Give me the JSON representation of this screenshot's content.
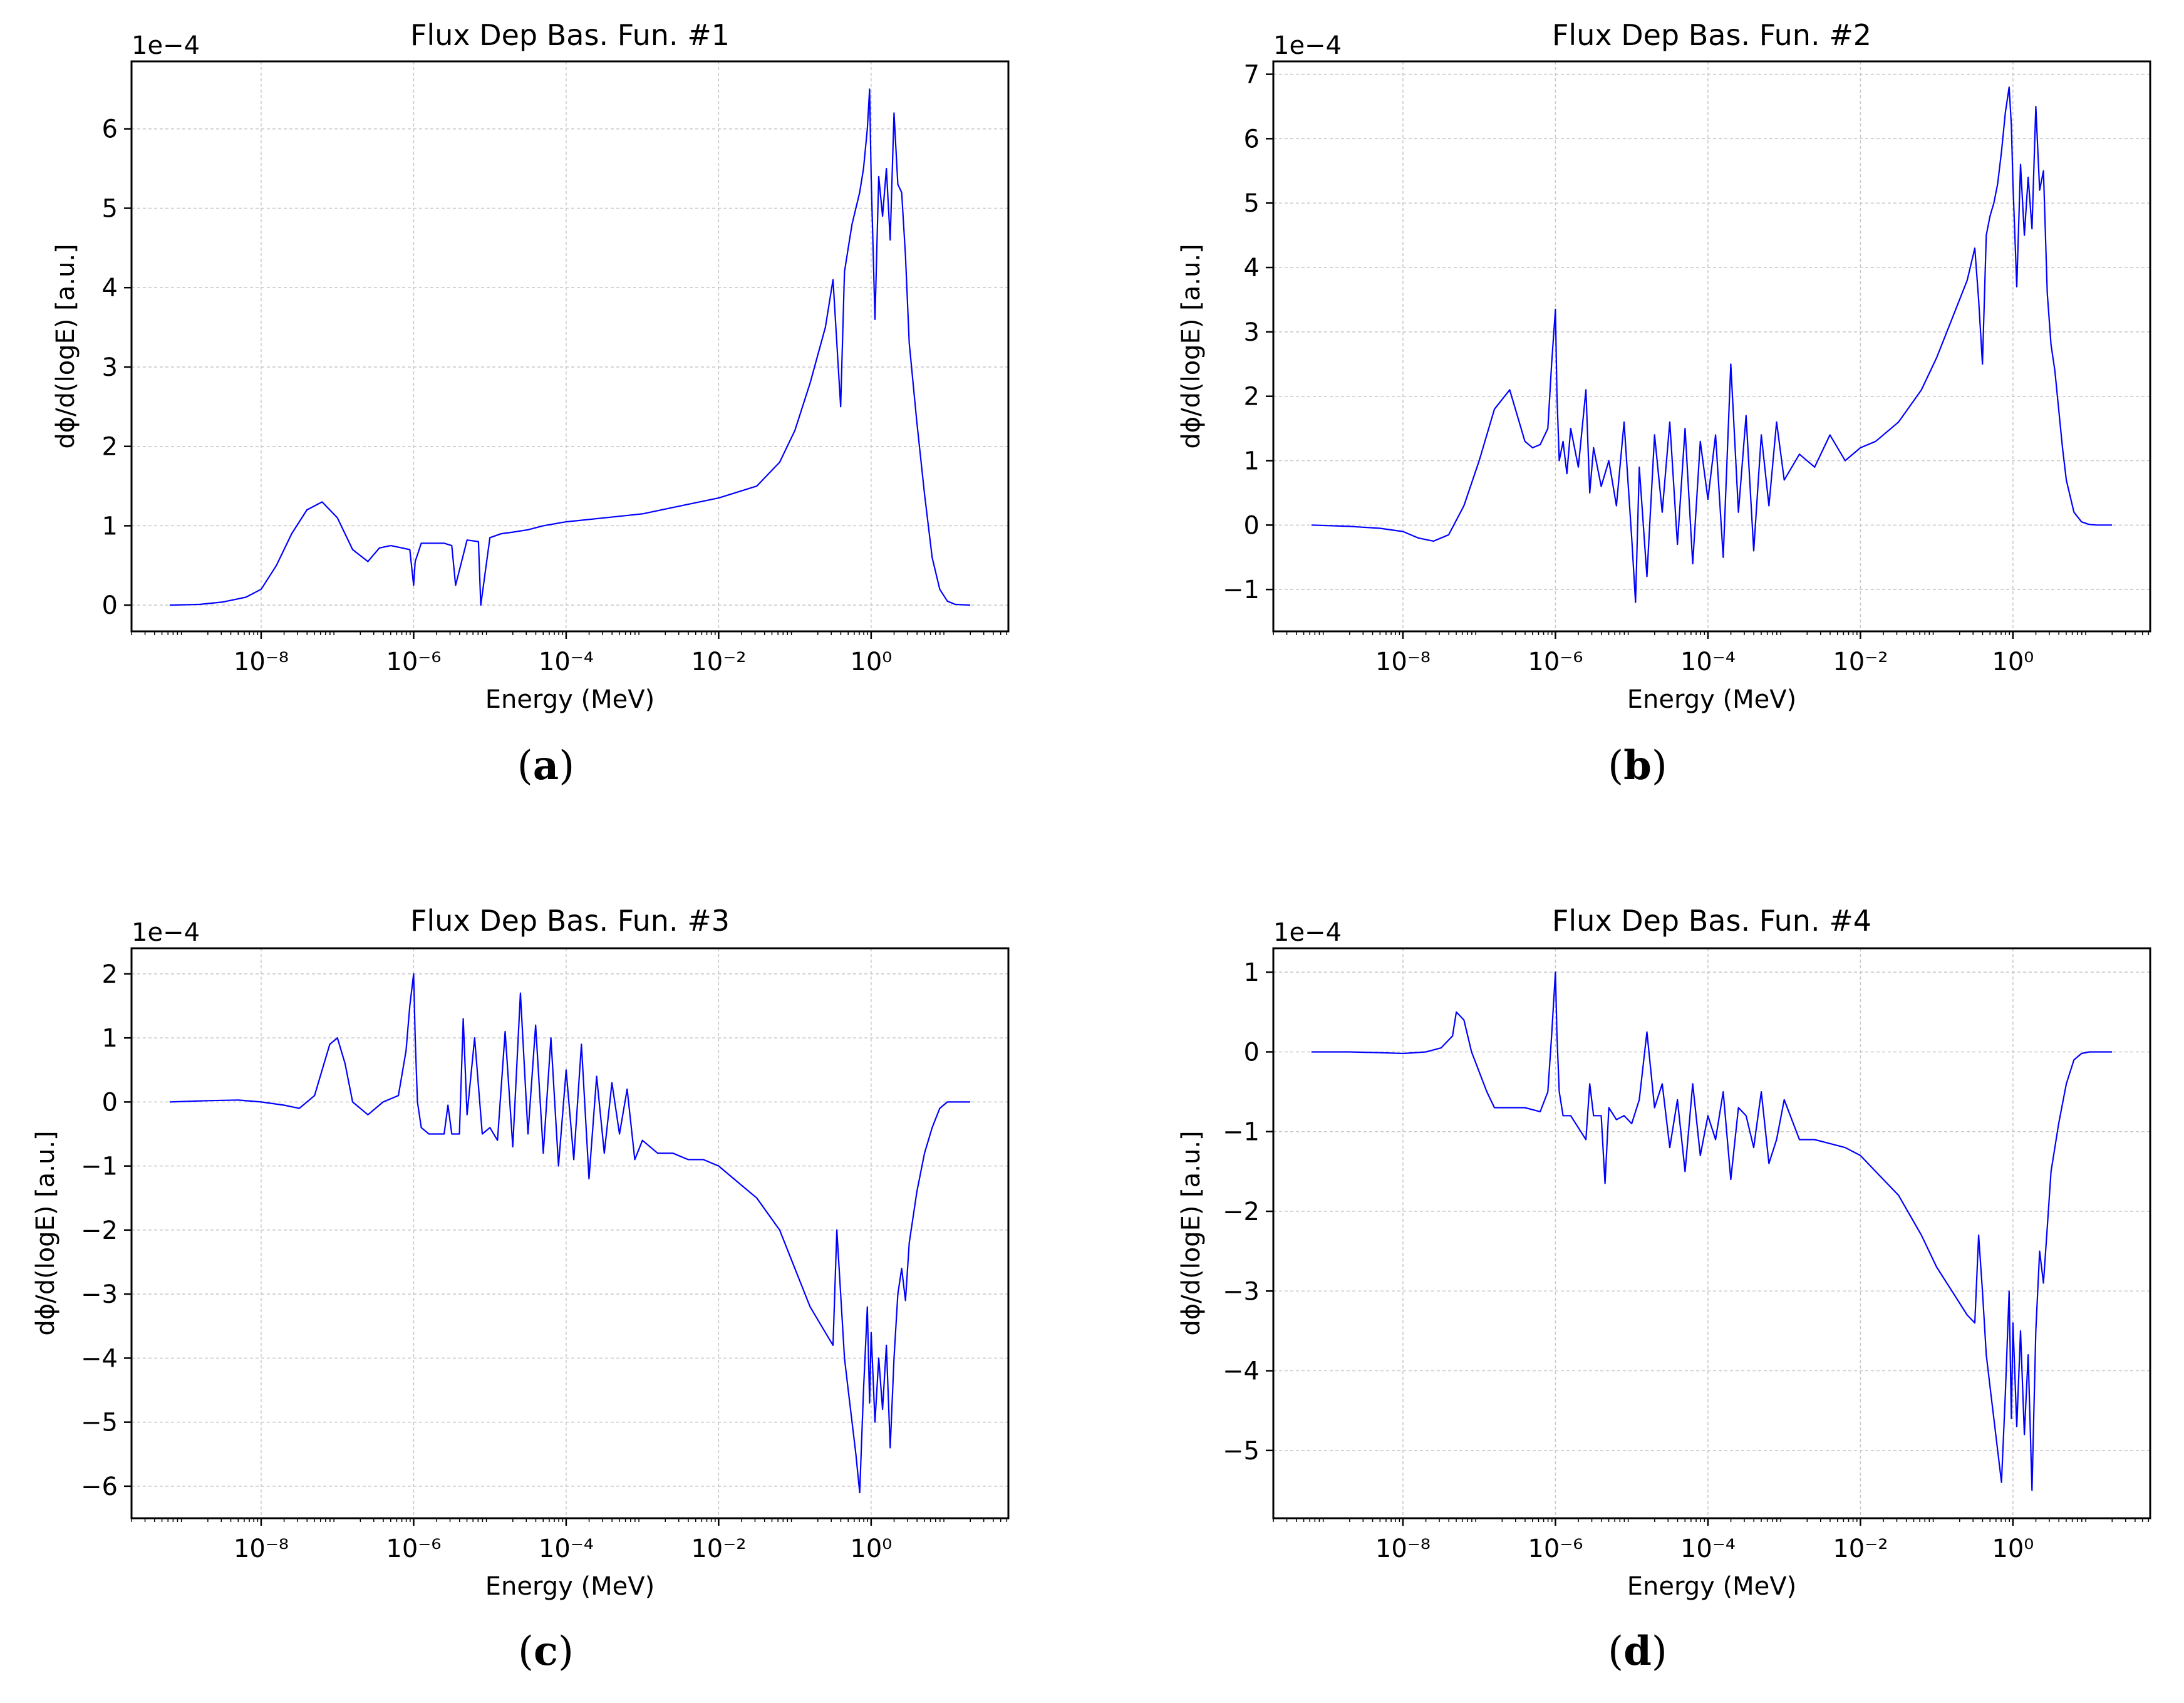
{
  "chart_data": [
    {
      "type": "line",
      "panel_label": "a",
      "title": "Flux Dep Bas. Fun. #1",
      "xlabel": "Energy (MeV)",
      "ylabel": "dϕ/d(logE) [a.u.]",
      "y_scale_note": "1e−4",
      "xscale": "log",
      "xlim_log10": [
        -9.7,
        1.8
      ],
      "x_ticks": [
        {
          "exp": -8,
          "label": "10⁻⁸"
        },
        {
          "exp": -6,
          "label": "10⁻⁶"
        },
        {
          "exp": -4,
          "label": "10⁻⁴"
        },
        {
          "exp": -2,
          "label": "10⁻²"
        },
        {
          "exp": 0,
          "label": "10⁰"
        }
      ],
      "ylim": [
        -0.33,
        6.85
      ],
      "y_ticks": [
        0,
        1,
        2,
        3,
        4,
        5,
        6
      ],
      "y_tick_labels": [
        "0",
        "1",
        "2",
        "3",
        "4",
        "5",
        "6"
      ],
      "grid": true,
      "line_color": "#0000ff",
      "series": [
        {
          "name": "Flux Dep Bas. Fun. #1",
          "x_log10": [
            -9.2,
            -8.8,
            -8.5,
            -8.2,
            -8.0,
            -7.8,
            -7.6,
            -7.4,
            -7.2,
            -7.0,
            -6.8,
            -6.6,
            -6.45,
            -6.3,
            -6.15,
            -6.05,
            -6.0,
            -5.98,
            -5.9,
            -5.7,
            -5.6,
            -5.5,
            -5.45,
            -5.3,
            -5.15,
            -5.12,
            -5.0,
            -4.85,
            -4.7,
            -4.5,
            -4.3,
            -4.0,
            -3.5,
            -3.0,
            -2.5,
            -2.0,
            -1.5,
            -1.2,
            -1.0,
            -0.8,
            -0.6,
            -0.5,
            -0.45,
            -0.4,
            -0.35,
            -0.3,
            -0.25,
            -0.2,
            -0.15,
            -0.1,
            -0.05,
            -0.02,
            0.0,
            0.05,
            0.1,
            0.15,
            0.2,
            0.25,
            0.3,
            0.35,
            0.4,
            0.45,
            0.5,
            0.6,
            0.7,
            0.8,
            0.9,
            1.0,
            1.1,
            1.3
          ],
          "y": [
            0.0,
            0.01,
            0.04,
            0.1,
            0.2,
            0.5,
            0.9,
            1.2,
            1.3,
            1.1,
            0.7,
            0.55,
            0.72,
            0.75,
            0.72,
            0.7,
            0.25,
            0.55,
            0.78,
            0.78,
            0.78,
            0.75,
            0.25,
            0.82,
            0.8,
            0.0,
            0.85,
            0.9,
            0.92,
            0.95,
            1.0,
            1.05,
            1.1,
            1.15,
            1.25,
            1.35,
            1.5,
            1.8,
            2.2,
            2.8,
            3.5,
            4.1,
            3.3,
            2.5,
            4.2,
            4.5,
            4.8,
            5.0,
            5.2,
            5.5,
            6.0,
            6.5,
            5.4,
            3.6,
            5.4,
            4.9,
            5.5,
            4.6,
            6.2,
            5.3,
            5.2,
            4.4,
            3.3,
            2.3,
            1.4,
            0.6,
            0.2,
            0.05,
            0.01,
            0.0
          ]
        }
      ]
    },
    {
      "type": "line",
      "panel_label": "b",
      "title": "Flux Dep Bas. Fun. #2",
      "xlabel": "Energy (MeV)",
      "ylabel": "dϕ/d(logE) [a.u.]",
      "y_scale_note": "1e−4",
      "xscale": "log",
      "xlim_log10": [
        -9.7,
        1.8
      ],
      "x_ticks": [
        {
          "exp": -8,
          "label": "10⁻⁸"
        },
        {
          "exp": -6,
          "label": "10⁻⁶"
        },
        {
          "exp": -4,
          "label": "10⁻⁴"
        },
        {
          "exp": -2,
          "label": "10⁻²"
        },
        {
          "exp": 0,
          "label": "10⁰"
        }
      ],
      "ylim": [
        -1.65,
        7.2
      ],
      "y_ticks": [
        -1,
        0,
        1,
        2,
        3,
        4,
        5,
        6,
        7
      ],
      "y_tick_labels": [
        "−1",
        "0",
        "1",
        "2",
        "3",
        "4",
        "5",
        "6",
        "7"
      ],
      "grid": true,
      "line_color": "#0000ff",
      "series": [
        {
          "name": "Flux Dep Bas. Fun. #2",
          "x_log10": [
            -9.2,
            -8.7,
            -8.3,
            -8.0,
            -7.8,
            -7.6,
            -7.4,
            -7.2,
            -7.0,
            -6.8,
            -6.6,
            -6.4,
            -6.3,
            -6.2,
            -6.1,
            -6.05,
            -6.0,
            -5.98,
            -5.95,
            -5.9,
            -5.85,
            -5.8,
            -5.7,
            -5.6,
            -5.55,
            -5.5,
            -5.4,
            -5.3,
            -5.2,
            -5.1,
            -5.0,
            -4.95,
            -4.9,
            -4.8,
            -4.7,
            -4.6,
            -4.5,
            -4.4,
            -4.3,
            -4.2,
            -4.1,
            -4.0,
            -3.9,
            -3.8,
            -3.7,
            -3.6,
            -3.5,
            -3.4,
            -3.3,
            -3.2,
            -3.1,
            -3.0,
            -2.8,
            -2.6,
            -2.4,
            -2.2,
            -2.0,
            -1.8,
            -1.5,
            -1.2,
            -1.0,
            -0.8,
            -0.6,
            -0.5,
            -0.45,
            -0.4,
            -0.35,
            -0.3,
            -0.25,
            -0.2,
            -0.15,
            -0.1,
            -0.05,
            -0.02,
            0.0,
            0.05,
            0.1,
            0.15,
            0.2,
            0.25,
            0.3,
            0.35,
            0.4,
            0.45,
            0.5,
            0.55,
            0.6,
            0.65,
            0.7,
            0.8,
            0.9,
            1.0,
            1.1,
            1.3
          ],
          "y": [
            0.0,
            -0.02,
            -0.05,
            -0.1,
            -0.2,
            -0.25,
            -0.15,
            0.3,
            1.0,
            1.8,
            2.1,
            1.3,
            1.2,
            1.25,
            1.5,
            2.5,
            3.35,
            2.0,
            1.0,
            1.3,
            0.8,
            1.5,
            0.9,
            2.1,
            0.5,
            1.2,
            0.6,
            1.0,
            0.3,
            1.6,
            -0.2,
            -1.2,
            0.9,
            -0.8,
            1.4,
            0.2,
            1.6,
            -0.3,
            1.5,
            -0.6,
            1.3,
            0.4,
            1.4,
            -0.5,
            2.5,
            0.2,
            1.7,
            -0.4,
            1.4,
            0.3,
            1.6,
            0.7,
            1.1,
            0.9,
            1.4,
            1.0,
            1.2,
            1.3,
            1.6,
            2.1,
            2.6,
            3.2,
            3.8,
            4.3,
            3.5,
            2.5,
            4.5,
            4.8,
            5.0,
            5.3,
            5.8,
            6.4,
            6.8,
            6.2,
            5.3,
            3.7,
            5.6,
            4.5,
            5.4,
            4.6,
            6.5,
            5.2,
            5.5,
            3.6,
            2.8,
            2.4,
            1.8,
            1.2,
            0.7,
            0.2,
            0.05,
            0.01,
            0.0,
            0.0
          ]
        }
      ]
    },
    {
      "type": "line",
      "panel_label": "c",
      "title": "Flux Dep Bas. Fun. #3",
      "xlabel": "Energy (MeV)",
      "ylabel": "dϕ/d(logE) [a.u.]",
      "y_scale_note": "1e−4",
      "xscale": "log",
      "xlim_log10": [
        -9.7,
        1.8
      ],
      "x_ticks": [
        {
          "exp": -8,
          "label": "10⁻⁸"
        },
        {
          "exp": -6,
          "label": "10⁻⁶"
        },
        {
          "exp": -4,
          "label": "10⁻⁴"
        },
        {
          "exp": -2,
          "label": "10⁻²"
        },
        {
          "exp": 0,
          "label": "10⁰"
        }
      ],
      "ylim": [
        -6.5,
        2.4
      ],
      "y_ticks": [
        -6,
        -5,
        -4,
        -3,
        -2,
        -1,
        0,
        1,
        2
      ],
      "y_tick_labels": [
        "−6",
        "−5",
        "−4",
        "−3",
        "−2",
        "−1",
        "0",
        "1",
        "2"
      ],
      "grid": true,
      "line_color": "#0000ff",
      "series": [
        {
          "name": "Flux Dep Bas. Fun. #3",
          "x_log10": [
            -9.2,
            -8.7,
            -8.3,
            -8.0,
            -7.7,
            -7.5,
            -7.3,
            -7.2,
            -7.1,
            -7.0,
            -6.9,
            -6.8,
            -6.6,
            -6.4,
            -6.2,
            -6.1,
            -6.05,
            -6.0,
            -5.98,
            -5.95,
            -5.9,
            -5.8,
            -5.6,
            -5.55,
            -5.5,
            -5.4,
            -5.35,
            -5.3,
            -5.2,
            -5.1,
            -5.0,
            -4.9,
            -4.8,
            -4.7,
            -4.6,
            -4.5,
            -4.4,
            -4.3,
            -4.2,
            -4.1,
            -4.0,
            -3.9,
            -3.8,
            -3.7,
            -3.6,
            -3.5,
            -3.4,
            -3.3,
            -3.2,
            -3.1,
            -3.0,
            -2.8,
            -2.6,
            -2.4,
            -2.2,
            -2.0,
            -1.8,
            -1.5,
            -1.2,
            -1.0,
            -0.8,
            -0.6,
            -0.5,
            -0.45,
            -0.4,
            -0.35,
            -0.3,
            -0.25,
            -0.2,
            -0.15,
            -0.1,
            -0.05,
            -0.02,
            0.0,
            0.05,
            0.1,
            0.15,
            0.2,
            0.25,
            0.3,
            0.35,
            0.4,
            0.45,
            0.5,
            0.6,
            0.7,
            0.8,
            0.9,
            1.0,
            1.1,
            1.3
          ],
          "y": [
            0.0,
            0.02,
            0.03,
            0.0,
            -0.05,
            -0.1,
            0.1,
            0.5,
            0.9,
            1.0,
            0.6,
            0.0,
            -0.2,
            0.0,
            0.1,
            0.8,
            1.5,
            2.0,
            1.0,
            0.0,
            -0.4,
            -0.5,
            -0.5,
            -0.05,
            -0.5,
            -0.5,
            1.3,
            -0.2,
            1.0,
            -0.5,
            -0.4,
            -0.6,
            1.1,
            -0.7,
            1.7,
            -0.5,
            1.2,
            -0.8,
            1.0,
            -1.0,
            0.5,
            -0.9,
            0.9,
            -1.2,
            0.4,
            -0.8,
            0.3,
            -0.5,
            0.2,
            -0.9,
            -0.6,
            -0.8,
            -0.8,
            -0.9,
            -0.9,
            -1.0,
            -1.2,
            -1.5,
            -2.0,
            -2.6,
            -3.2,
            -3.6,
            -3.8,
            -2.0,
            -3.0,
            -4.0,
            -4.5,
            -5.0,
            -5.5,
            -6.1,
            -4.5,
            -3.2,
            -4.7,
            -3.6,
            -5.0,
            -4.0,
            -4.8,
            -3.8,
            -5.4,
            -4.0,
            -3.0,
            -2.6,
            -3.1,
            -2.2,
            -1.4,
            -0.8,
            -0.4,
            -0.1,
            0.0,
            0.0,
            0.0
          ]
        }
      ]
    },
    {
      "type": "line",
      "panel_label": "d",
      "title": "Flux Dep Bas. Fun. #4",
      "xlabel": "Energy (MeV)",
      "ylabel": "dϕ/d(logE) [a.u.]",
      "y_scale_note": "1e−4",
      "xscale": "log",
      "xlim_log10": [
        -9.7,
        1.8
      ],
      "x_ticks": [
        {
          "exp": -8,
          "label": "10⁻⁸"
        },
        {
          "exp": -6,
          "label": "10⁻⁶"
        },
        {
          "exp": -4,
          "label": "10⁻⁴"
        },
        {
          "exp": -2,
          "label": "10⁻²"
        },
        {
          "exp": 0,
          "label": "10⁰"
        }
      ],
      "ylim": [
        -5.85,
        1.3
      ],
      "y_ticks": [
        -5,
        -4,
        -3,
        -2,
        -1,
        0,
        1
      ],
      "y_tick_labels": [
        "−5",
        "−4",
        "−3",
        "−2",
        "−1",
        "0",
        "1"
      ],
      "grid": true,
      "line_color": "#0000ff",
      "series": [
        {
          "name": "Flux Dep Bas. Fun. #4",
          "x_log10": [
            -9.2,
            -8.7,
            -8.3,
            -8.0,
            -7.7,
            -7.5,
            -7.35,
            -7.3,
            -7.2,
            -7.1,
            -6.9,
            -6.8,
            -6.6,
            -6.4,
            -6.2,
            -6.1,
            -6.05,
            -6.0,
            -5.98,
            -5.95,
            -5.9,
            -5.8,
            -5.6,
            -5.55,
            -5.5,
            -5.4,
            -5.35,
            -5.3,
            -5.2,
            -5.1,
            -5.0,
            -4.9,
            -4.8,
            -4.7,
            -4.6,
            -4.5,
            -4.4,
            -4.3,
            -4.2,
            -4.1,
            -4.0,
            -3.9,
            -3.8,
            -3.7,
            -3.6,
            -3.5,
            -3.4,
            -3.3,
            -3.2,
            -3.1,
            -3.0,
            -2.8,
            -2.6,
            -2.4,
            -2.2,
            -2.0,
            -1.8,
            -1.5,
            -1.2,
            -1.0,
            -0.8,
            -0.6,
            -0.5,
            -0.45,
            -0.4,
            -0.35,
            -0.3,
            -0.25,
            -0.2,
            -0.15,
            -0.1,
            -0.05,
            -0.02,
            0.0,
            0.05,
            0.1,
            0.15,
            0.2,
            0.25,
            0.3,
            0.35,
            0.4,
            0.45,
            0.5,
            0.6,
            0.7,
            0.8,
            0.9,
            1.0,
            1.1,
            1.3
          ],
          "y": [
            0.0,
            0.0,
            -0.01,
            -0.02,
            0.0,
            0.05,
            0.2,
            0.5,
            0.4,
            0.0,
            -0.5,
            -0.7,
            -0.7,
            -0.7,
            -0.75,
            -0.5,
            0.2,
            1.0,
            0.2,
            -0.5,
            -0.8,
            -0.8,
            -1.1,
            -0.4,
            -0.8,
            -0.8,
            -1.65,
            -0.7,
            -0.85,
            -0.8,
            -0.9,
            -0.6,
            0.25,
            -0.7,
            -0.4,
            -1.2,
            -0.6,
            -1.5,
            -0.4,
            -1.3,
            -0.8,
            -1.1,
            -0.5,
            -1.6,
            -0.7,
            -0.8,
            -1.2,
            -0.5,
            -1.4,
            -1.1,
            -0.6,
            -1.1,
            -1.1,
            -1.15,
            -1.2,
            -1.3,
            -1.5,
            -1.8,
            -2.3,
            -2.7,
            -3.0,
            -3.3,
            -3.4,
            -2.3,
            -3.0,
            -3.8,
            -4.2,
            -4.6,
            -5.0,
            -5.4,
            -4.3,
            -3.0,
            -4.6,
            -3.4,
            -4.7,
            -3.5,
            -4.8,
            -3.8,
            -5.5,
            -3.5,
            -2.5,
            -2.9,
            -2.2,
            -1.5,
            -0.9,
            -0.4,
            -0.1,
            -0.02,
            0.0,
            0.0,
            0.0
          ]
        }
      ]
    }
  ]
}
